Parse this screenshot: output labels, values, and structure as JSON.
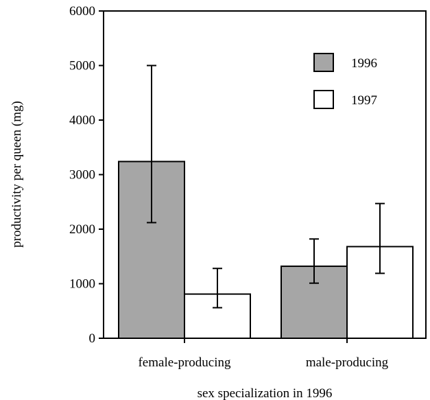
{
  "chart_data": {
    "type": "bar",
    "title": "",
    "xlabel": "sex specialization in 1996",
    "ylabel": "productivity per queen (mg)",
    "ylim": [
      0,
      6000
    ],
    "yticks": [
      0,
      1000,
      2000,
      3000,
      4000,
      5000,
      6000
    ],
    "categories": [
      "female-producing",
      "male-producing"
    ],
    "series": [
      {
        "name": "1996",
        "color": "#a6a6a6",
        "values": [
          3240,
          1320
        ],
        "err_low": [
          2120,
          1010
        ],
        "err_high": [
          5000,
          1820
        ]
      },
      {
        "name": "1997",
        "color": "#ffffff",
        "values": [
          810,
          1680
        ],
        "err_low": [
          560,
          1190
        ],
        "err_high": [
          1280,
          2470
        ]
      }
    ],
    "legend_position": "top-right",
    "grid": false
  }
}
